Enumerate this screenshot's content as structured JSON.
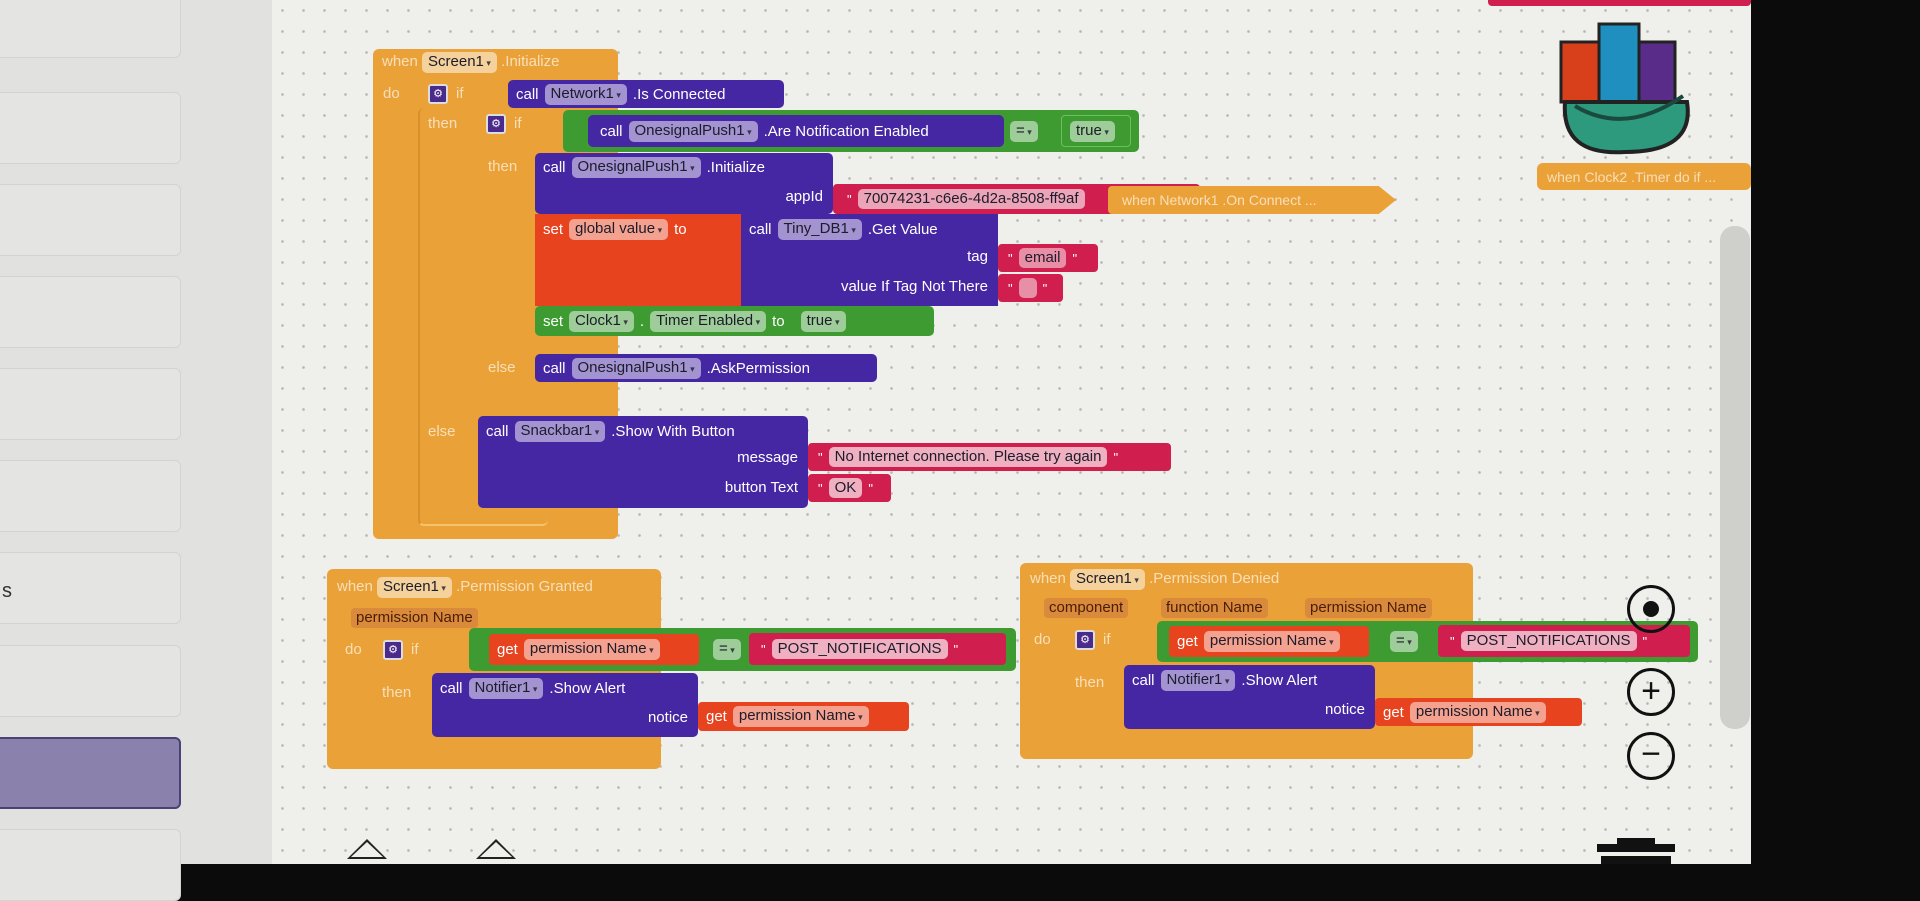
{
  "sidebar": {
    "partial_label": "s",
    "selected_index": 8
  },
  "init": {
    "when": "when",
    "component": "Screen1",
    "event": ".Initialize",
    "do": "do",
    "if1": {
      "if": "if",
      "call": "call",
      "component": "Network1",
      "method": ".Is Connected"
    },
    "then1": "then",
    "if2": {
      "if": "if",
      "call": "call",
      "component": "OnesignalPush1",
      "method": ".Are Notification Enabled",
      "op": "=",
      "value": "true"
    },
    "then2": "then",
    "initialize": {
      "call": "call",
      "component": "OnesignalPush1",
      "method": ".Initialize",
      "arg": "appId",
      "appId": "70074231-c6e6-4d2a-8508-ff9af"
    },
    "set_global": {
      "set": "set",
      "var": "global value",
      "to": "to",
      "call": "call",
      "component": "Tiny_DB1",
      "method": ".Get Value",
      "arg1": "tag",
      "tag_value": "email",
      "arg2": "value If Tag Not There",
      "default_value": ""
    },
    "set_clock": {
      "set": "set",
      "component": "Clock1",
      "dot": ".",
      "property": "Timer Enabled",
      "to": "to",
      "value": "true"
    },
    "else2": "else",
    "ask": {
      "call": "call",
      "component": "OnesignalPush1",
      "method": ".AskPermission"
    },
    "else1": "else",
    "snackbar": {
      "call": "call",
      "component": "Snackbar1",
      "method": ".Show With Button",
      "arg1": "message",
      "message": "No Internet connection. Please try again",
      "arg2": "button Text",
      "button_text": "OK"
    }
  },
  "collapsed": {
    "on_connect": "when  Network1 .On Connect ...",
    "clock2": "when  Clock2 .Timer do if ..."
  },
  "granted": {
    "when": "when",
    "component": "Screen1",
    "event": ".Permission Granted",
    "param": "permission Name",
    "do": "do",
    "if": "if",
    "get": "get",
    "var": "permission Name",
    "op": "=",
    "compare": "POST_NOTIFICATIONS",
    "then": "then",
    "call": "call",
    "notifier": "Notifier1",
    "method": ".Show Alert",
    "arg": "notice",
    "get2": "get",
    "var2": "permission Name"
  },
  "denied": {
    "when": "when",
    "component": "Screen1",
    "event": ".Permission Denied",
    "params": [
      "component",
      "function Name",
      "permission Name"
    ],
    "do": "do",
    "if": "if",
    "get": "get",
    "var": "permission Name",
    "op": "=",
    "compare": "POST_NOTIFICATIONS",
    "then": "then",
    "call": "call",
    "notifier": "Notifier1",
    "method": ".Show Alert",
    "arg": "notice",
    "get2": "get",
    "var2": "permission Name"
  },
  "colors": {
    "event": "#eaa238",
    "method": "#4627a3",
    "logic": "#3d9b32",
    "text": "#d01f4e",
    "variable": "#e8431f"
  }
}
